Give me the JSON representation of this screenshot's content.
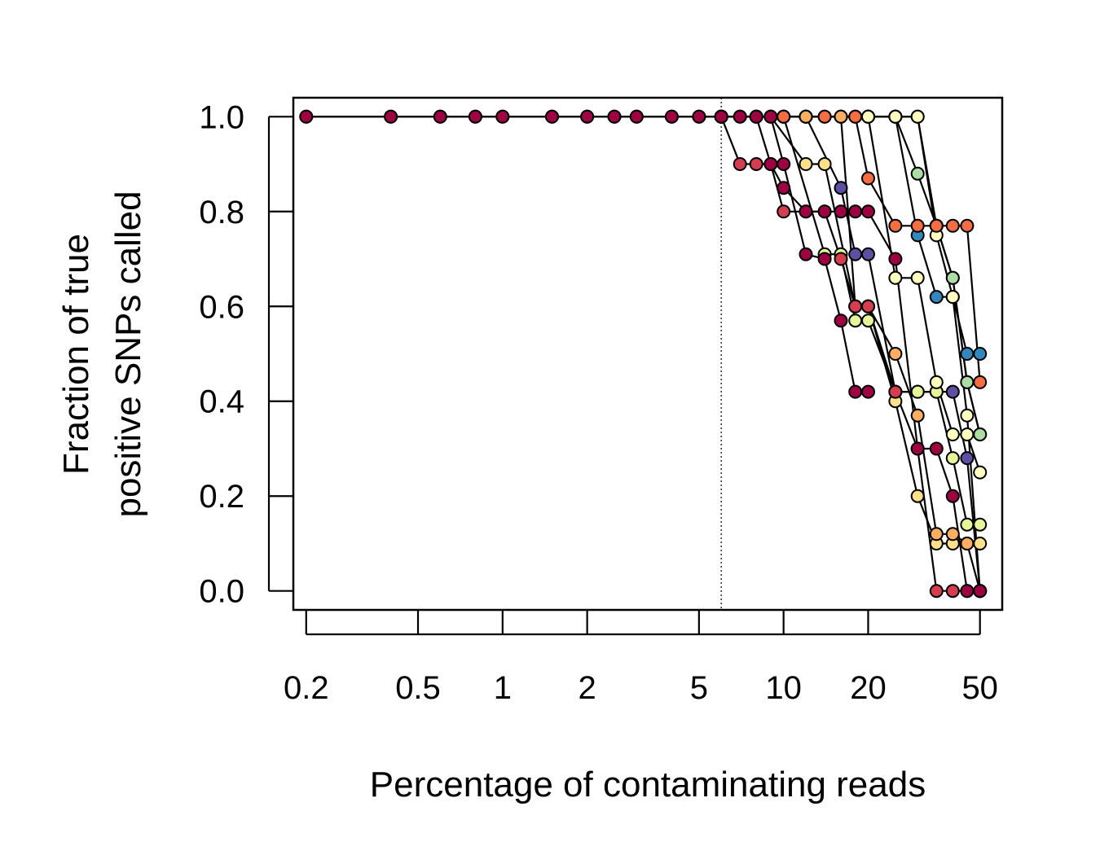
{
  "chart_data": {
    "type": "line",
    "xscale": "log",
    "xlabel": "Percentage of contaminating reads",
    "ylabel": [
      "Fraction of true",
      "positive SNPs called"
    ],
    "xlim": [
      0.18,
      60
    ],
    "ylim": [
      -0.04,
      1.04
    ],
    "x_ticks": [
      0.2,
      0.5,
      1,
      2,
      5,
      10,
      20,
      50
    ],
    "x_tick_labels": [
      "0.2",
      "0.5",
      "1",
      "2",
      "5",
      "10",
      "20",
      "50"
    ],
    "y_ticks": [
      0.0,
      0.2,
      0.4,
      0.6,
      0.8,
      1.0
    ],
    "y_tick_labels": [
      "0.0",
      "0.2",
      "0.4",
      "0.6",
      "0.8",
      "1.0"
    ],
    "reference_line": {
      "x": 6,
      "style": "dotted"
    },
    "shared_x": [
      0.2,
      0.4,
      0.6,
      0.8,
      1.0,
      1.5,
      2.0,
      2.5,
      3.0,
      4.0,
      5.0,
      6.0
    ],
    "series": [
      {
        "name": "s1",
        "color": "#9E0142",
        "x": [
          0.2,
          0.4,
          0.6,
          0.8,
          1.0,
          1.5,
          2.0,
          2.5,
          3.0,
          4.0,
          5.0,
          6.0,
          7.0,
          8.0,
          9.0,
          10.0,
          12.0,
          14.0,
          16.0,
          18.0,
          20.0,
          25.0,
          30.0,
          35.0,
          40.0,
          45.0,
          50.0
        ],
        "y": [
          1,
          1,
          1,
          1,
          1,
          1,
          1,
          1,
          1,
          1,
          1,
          1,
          1,
          1,
          0.9,
          0.85,
          0.8,
          0.8,
          0.8,
          0.8,
          0.8,
          0.7,
          0.3,
          0.3,
          0.2,
          0.0,
          0.0
        ]
      },
      {
        "name": "s2",
        "color": "#9E0142",
        "x": [
          0.2,
          0.4,
          0.6,
          0.8,
          1.0,
          1.5,
          2.0,
          2.5,
          3.0,
          4.0,
          5.0,
          6.0,
          7.0,
          8.0,
          9.0,
          10.0,
          12.0,
          14.0,
          16.0,
          18.0,
          20.0
        ],
        "y": [
          1,
          1,
          1,
          1,
          1,
          1,
          1,
          1,
          1,
          1,
          1,
          1,
          1,
          1,
          1,
          0.9,
          0.71,
          0.7,
          0.57,
          0.42,
          0.42
        ]
      },
      {
        "name": "s3",
        "color": "#D53E4F",
        "x": [
          6.0,
          7.0,
          8.0,
          9.0,
          10.0,
          12.0,
          14.0,
          16.0,
          18.0,
          20.0,
          25.0,
          30.0,
          35.0,
          40.0,
          45.0,
          50.0
        ],
        "y": [
          1,
          0.9,
          0.9,
          0.9,
          0.8,
          0.8,
          0.8,
          0.7,
          0.6,
          0.6,
          0.42,
          0.3,
          0.0,
          0.0,
          0.0,
          0.0
        ]
      },
      {
        "name": "s4",
        "color": "#F46D43",
        "x": [
          6.0,
          8.0,
          10.0,
          14.0,
          18.0,
          20.0,
          25.0,
          30.0,
          35.0,
          40.0,
          45.0,
          50.0
        ],
        "y": [
          1,
          1,
          1,
          1,
          1,
          0.87,
          0.77,
          0.77,
          0.77,
          0.77,
          0.77,
          0.44
        ]
      },
      {
        "name": "s5",
        "color": "#FDAE61",
        "x": [
          6.0,
          9.0,
          12.0,
          16.0,
          18.0,
          20.0,
          25.0,
          30.0,
          35.0,
          40.0,
          45.0,
          50.0
        ],
        "y": [
          1,
          1,
          1,
          1,
          0.6,
          0.6,
          0.5,
          0.37,
          0.12,
          0.12,
          0.1,
          0.0
        ]
      },
      {
        "name": "s6",
        "color": "#FEE08B",
        "x": [
          6.0,
          9.0,
          12.0,
          14.0,
          18.0,
          20.0,
          25.0,
          30.0,
          35.0,
          40.0,
          45.0,
          50.0
        ],
        "y": [
          1,
          1,
          0.9,
          0.9,
          0.6,
          0.6,
          0.4,
          0.2,
          0.1,
          0.1,
          0.1,
          0.1
        ]
      },
      {
        "name": "s7",
        "color": "#FFFFBF",
        "x": [
          6.0,
          10.0,
          16.0,
          20.0,
          25.0,
          30.0,
          35.0,
          40.0,
          45.0,
          50.0
        ],
        "y": [
          1,
          1,
          1,
          1,
          0.66,
          0.66,
          0.44,
          0.33,
          0.33,
          0.25
        ]
      },
      {
        "name": "s8",
        "color": "#FFFFBF",
        "x": [
          6.0,
          10.0,
          20.0,
          25.0,
          30.0,
          35.0,
          40.0,
          45.0,
          50.0
        ],
        "y": [
          1,
          1,
          1,
          1,
          1,
          0.75,
          0.62,
          0.37,
          0.0
        ]
      },
      {
        "name": "s9",
        "color": "#E6F598",
        "x": [
          6.0,
          10.0,
          14.0,
          16.0,
          18.0,
          20.0,
          25.0,
          30.0,
          35.0,
          40.0,
          45.0,
          50.0
        ],
        "y": [
          1,
          1,
          0.71,
          0.71,
          0.57,
          0.57,
          0.42,
          0.42,
          0.42,
          0.28,
          0.14,
          0.14
        ]
      },
      {
        "name": "s10",
        "color": "#ABDDA4",
        "x": [
          6.0,
          12.0,
          16.0,
          20.0,
          25.0,
          30.0,
          35.0,
          40.0,
          45.0,
          50.0
        ],
        "y": [
          1,
          1,
          1,
          1,
          1,
          0.88,
          0.77,
          0.66,
          0.44,
          0.33
        ]
      },
      {
        "name": "s11",
        "color": "#66C2A5",
        "x": [
          6.0,
          12.0,
          20.0,
          25.0,
          30.0,
          35.0,
          40.0,
          45.0,
          50.0
        ],
        "y": [
          1,
          1,
          1,
          1,
          1,
          0.77,
          0.66,
          0.44,
          0.33
        ]
      },
      {
        "name": "s12",
        "color": "#3288BD",
        "x": [
          6.0,
          14.0,
          18.0,
          20.0,
          25.0,
          30.0,
          35.0,
          40.0,
          45.0,
          50.0
        ],
        "y": [
          1,
          1,
          1,
          1,
          1,
          0.75,
          0.62,
          0.62,
          0.5,
          0.5
        ]
      },
      {
        "name": "s13",
        "color": "#5E4FA2",
        "x": [
          6.0,
          8.0,
          12.0,
          16.0,
          18.0,
          20.0,
          25.0,
          30.0,
          35.0,
          40.0,
          45.0,
          50.0
        ],
        "y": [
          1,
          1,
          1,
          0.85,
          0.71,
          0.71,
          0.42,
          0.42,
          0.42,
          0.42,
          0.28,
          0.0
        ]
      }
    ]
  }
}
